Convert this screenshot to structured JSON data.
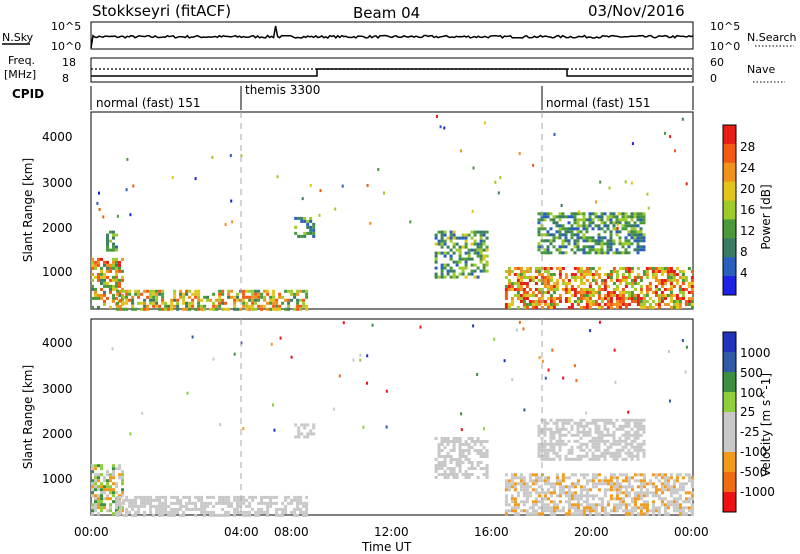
{
  "header": {
    "station": "Stokkseyri (fitACF)",
    "beam": "Beam 04",
    "date": "03/Nov/2016"
  },
  "noise_panel": {
    "left_label": "N.Sky",
    "right_label": "N.Search",
    "left_ticks": [
      "10^5",
      "10^0"
    ],
    "right_ticks": [
      "10^5",
      "10^0"
    ]
  },
  "freq_panel": {
    "left_label_line1": "Freq.",
    "left_label_line2": "[MHz]",
    "right_label": "Nave",
    "left_ticks": [
      "18",
      "8"
    ],
    "right_ticks": [
      "60",
      "0"
    ]
  },
  "cpid_panel": {
    "label": "CPID",
    "segments": [
      "normal (fast) 151",
      "themis 3300",
      "normal (fast) 151"
    ]
  },
  "colors": {
    "power": [
      "#1e22e6",
      "#2a5fbd",
      "#3a7d63",
      "#4b9a3a",
      "#9ecb2a",
      "#e3c41a",
      "#f0921c",
      "#f25a14",
      "#e81e14"
    ],
    "velocity": [
      "#ee1111",
      "#f06a12",
      "#f29a1a",
      "#c8c8c8",
      "#c8c8c8",
      "#8fcf3a",
      "#3b8f3f",
      "#2e5aa6",
      "#2233bb"
    ],
    "velocity_mid_gray": "#c8c8c8"
  },
  "chart_data": [
    {
      "type": "heatmap",
      "title": "",
      "xlabel": "",
      "ylabel": "Slant Range [km]",
      "xlim": [
        "00:00",
        "00:00"
      ],
      "ylim": [
        180,
        4500
      ],
      "yticks": [
        "4000",
        "3000",
        "2000",
        "1000"
      ],
      "colorbar": {
        "label": "Power [dB]",
        "ticks": [
          "28",
          "24",
          "20",
          "16",
          "12",
          "8",
          "4"
        ],
        "range": [
          0,
          30
        ]
      },
      "grid": false,
      "regions": [
        {
          "t_hours": [
            0.0,
            1.2
          ],
          "range_km": [
            200,
            1300
          ],
          "power_db": [
            8,
            28
          ]
        },
        {
          "t_hours": [
            0.6,
            1.0
          ],
          "range_km": [
            1500,
            1900
          ],
          "power_db": [
            4,
            16
          ]
        },
        {
          "t_hours": [
            1.0,
            8.6
          ],
          "range_km": [
            200,
            600
          ],
          "power_db": [
            8,
            26
          ]
        },
        {
          "t_hours": [
            8.1,
            8.9
          ],
          "range_km": [
            1800,
            2200
          ],
          "power_db": [
            4,
            16
          ]
        },
        {
          "t_hours": [
            13.7,
            15.8
          ],
          "range_km": [
            900,
            1900
          ],
          "power_db": [
            4,
            18
          ]
        },
        {
          "t_hours": [
            16.5,
            24.0
          ],
          "range_km": [
            200,
            1100
          ],
          "power_db": [
            12,
            30
          ]
        },
        {
          "t_hours": [
            17.8,
            22.0
          ],
          "range_km": [
            1400,
            2300
          ],
          "power_db": [
            4,
            16
          ]
        }
      ]
    },
    {
      "type": "heatmap",
      "title": "",
      "xlabel": "Time UT",
      "ylabel": "Slant Range [km]",
      "xticks": [
        "00:00",
        "04:00",
        "08:00",
        "12:00",
        "16:00",
        "20:00",
        "00:00"
      ],
      "ylim": [
        180,
        4500
      ],
      "yticks": [
        "4000",
        "3000",
        "2000",
        "1000"
      ],
      "colorbar": {
        "label": "Velocity [m s^-1]",
        "ticks": [
          "1000",
          "500",
          "100",
          "25",
          "-25",
          "-100",
          "-500",
          "-1000"
        ],
        "range": [
          -1000,
          1000
        ]
      },
      "grid": false,
      "regions": [
        {
          "t_hours": [
            0.0,
            1.2
          ],
          "range_km": [
            200,
            1300
          ],
          "velocity": [
            -500,
            500
          ]
        },
        {
          "t_hours": [
            1.0,
            8.6
          ],
          "range_km": [
            200,
            600
          ],
          "velocity": [
            -100,
            100
          ]
        },
        {
          "t_hours": [
            8.1,
            8.9
          ],
          "range_km": [
            1900,
            2200
          ],
          "velocity": [
            -25,
            25
          ]
        },
        {
          "t_hours": [
            13.7,
            15.8
          ],
          "range_km": [
            1000,
            1900
          ],
          "velocity": [
            -300,
            25
          ]
        },
        {
          "t_hours": [
            16.5,
            24.0
          ],
          "range_km": [
            200,
            1100
          ],
          "velocity": [
            -500,
            25
          ]
        },
        {
          "t_hours": [
            17.8,
            22.0
          ],
          "range_km": [
            1400,
            2300
          ],
          "velocity": [
            -300,
            -25
          ]
        }
      ]
    }
  ]
}
